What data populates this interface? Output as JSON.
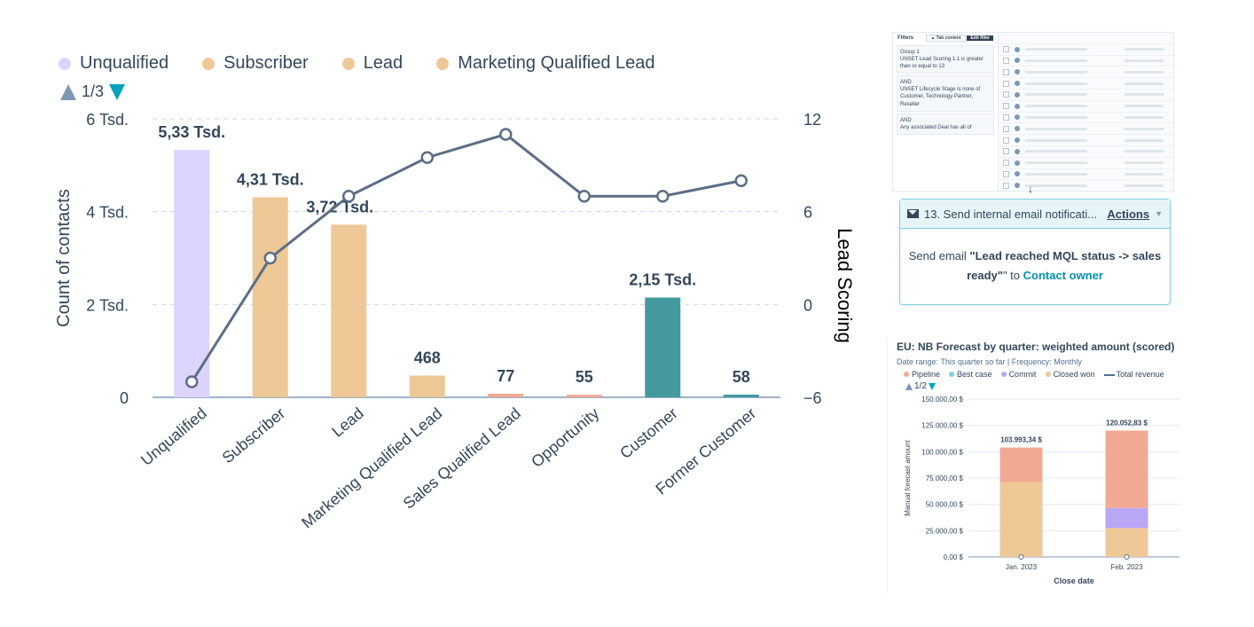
{
  "legend": {
    "items": [
      {
        "label": "Unqualified",
        "color": "#dcd4fc"
      },
      {
        "label": "Subscriber",
        "color": "#eec896"
      },
      {
        "label": "Lead",
        "color": "#eec896"
      },
      {
        "label": "Marketing Qualified Lead",
        "color": "#eec896"
      }
    ],
    "pager": "1/3"
  },
  "chart_data": [
    {
      "type": "bar",
      "categories": [
        "Unqualified",
        "Subscriber",
        "Lead",
        "Marketing Qualified Lead",
        "Sales Qualified Lead",
        "Opportunity",
        "Customer",
        "Former Customer"
      ],
      "series": [
        {
          "values": [
            5330,
            4310,
            3720,
            468,
            77,
            55,
            2150,
            58
          ],
          "colors": [
            "#dcd4fc",
            "#eec896",
            "#eec896",
            "#eec896",
            "#f2a994",
            "#f2a994",
            "#44999f",
            "#44999f"
          ]
        },
        {
          "type": "line",
          "axis": "right",
          "values": [
            -5,
            3,
            7,
            9.5,
            11,
            7,
            7,
            8
          ],
          "color": "#5b6e85"
        }
      ],
      "data_labels": [
        "5,33 Tsd.",
        "4,31 Tsd.",
        "3,72 Tsd.",
        "468",
        "77",
        "55",
        "2,15 Tsd.",
        "58"
      ],
      "ylabel": "Count of contacts",
      "y2label": "Lead Scoring",
      "ylim": [
        0,
        6000
      ],
      "y2lim": [
        -6,
        12
      ],
      "yticks": [
        "0",
        "2 Tsd.",
        "4 Tsd.",
        "6 Tsd."
      ],
      "y2ticks": [
        "−6",
        "0",
        "6",
        "12"
      ],
      "grid": true,
      "legend": "top-left"
    },
    {
      "type": "bar",
      "title": "EU: NB Forecast by quarter: weighted amount (scored)",
      "categories": [
        "Jan. 2023",
        "Feb. 2023"
      ],
      "series": [
        {
          "name": "Pipeline",
          "color": "#f2a994",
          "values": [
            32993.34,
            73552.83
          ]
        },
        {
          "name": "Best case",
          "color": "#7fd1de",
          "values": [
            0,
            0
          ]
        },
        {
          "name": "Commit",
          "color": "#b9a6f5",
          "values": [
            0,
            19000
          ]
        },
        {
          "name": "Closed won",
          "color": "#eec896",
          "values": [
            71000,
            27500
          ]
        },
        {
          "name": "Total revenue",
          "color": "#516f90",
          "type": "line",
          "values": [
            0,
            0
          ]
        }
      ],
      "totals": [
        "103.993,34 $",
        "120.052,83 $"
      ],
      "xlabel": "Close date",
      "ylabel": "Manual forecast amount",
      "ylim": [
        0,
        150000
      ],
      "yticks": [
        "0,00 $",
        "25.000,00 $",
        "50.000,00 $",
        "75.000,00 $",
        "100.000,00 $",
        "125.000,00 $",
        "150.000,00 $"
      ],
      "stacked": true
    }
  ],
  "workflow": {
    "filters_title": "Filters",
    "btn_a": "▲ Tab content",
    "btn_b": "Edit filter",
    "group_label": "Group 1",
    "group_text_1": "UNSET Lead Scoring 1.1 is greater than or equal to 13",
    "and_1": "AND",
    "group_text_2": "UNSET Lifecycle Stage is none of Customer, Technology Partner, Reseller",
    "and_2": "AND",
    "group_text_3": "Any associated Deal has all of"
  },
  "email_card": {
    "title": "13. Send internal email notificati...",
    "actions": "Actions",
    "body_prefix": "Send email ",
    "body_bold": "\"Lead reached MQL status -> sales ready\"",
    "body_mid": "\" to ",
    "body_link": "Contact owner"
  },
  "forecast": {
    "subtitle_1": "Date range: This quarter so far",
    "subtitle_sep": "|",
    "subtitle_2": "Frequency: Monthly",
    "pager": "1/2"
  }
}
